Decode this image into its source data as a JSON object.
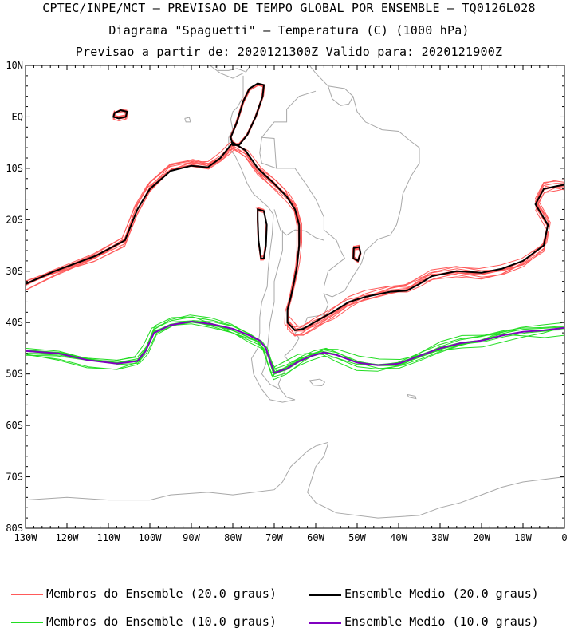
{
  "header": {
    "line1": "CPTEC/INPE/MCT – PREVISAO DE TEMPO GLOBAL POR ENSEMBLE – TQ0126L028",
    "line2": "Diagrama \"Spaguetti\" – Temperatura (C) (1000 hPa)",
    "line3": "Previsao a partir de: 2020121300Z  Valido para: 2020121900Z"
  },
  "axes": {
    "lat_labels": [
      "10N",
      "EQ",
      "10S",
      "20S",
      "30S",
      "40S",
      "50S",
      "60S",
      "70S",
      "80S"
    ],
    "lon_labels": [
      "130W",
      "120W",
      "110W",
      "100W",
      "90W",
      "80W",
      "70W",
      "60W",
      "50W",
      "40W",
      "30W",
      "20W",
      "10W",
      "0"
    ]
  },
  "legend": {
    "members_20": "Membros do Ensemble (20.0 graus)",
    "mean_20": "Ensemble Medio (20.0 graus)",
    "members_10": "Membros do Ensemble (10.0 graus)",
    "mean_10": "Ensemble Medio (10.0 graus)"
  },
  "colors": {
    "members_20": "#ff5a5a",
    "mean_20": "#000000",
    "members_10": "#22dd22",
    "mean_10": "#8000c0",
    "coastline": "#a8a8a8"
  },
  "map_data": {
    "extent": {
      "lon": [
        -130,
        0
      ],
      "lat": [
        -80,
        10
      ]
    },
    "isotherm_20_mean": [
      [
        -130,
        -32.5
      ],
      [
        -123,
        -30
      ],
      [
        -113,
        -27
      ],
      [
        -106,
        -24
      ],
      [
        -103,
        -18
      ],
      [
        -100,
        -14
      ],
      [
        -95,
        -10.5
      ],
      [
        -90,
        -9.5
      ],
      [
        -86,
        -9.8
      ],
      [
        -83,
        -8
      ],
      [
        -81,
        -6
      ],
      [
        -80,
        -5
      ],
      [
        -77,
        -6.5
      ],
      [
        -74,
        -10
      ],
      [
        -70,
        -13
      ],
      [
        -67,
        -15.5
      ],
      [
        -65,
        -18
      ],
      [
        -64,
        -21
      ],
      [
        -64,
        -25
      ],
      [
        -64.5,
        -29
      ],
      [
        -65.2,
        -32
      ],
      [
        -66,
        -35
      ],
      [
        -66.8,
        -37.5
      ],
      [
        -66.8,
        -40
      ],
      [
        -65,
        -41.5
      ],
      [
        -63,
        -41.2
      ],
      [
        -60,
        -39.8
      ],
      [
        -56,
        -38
      ],
      [
        -52,
        -36
      ],
      [
        -48,
        -35
      ],
      [
        -42,
        -34
      ],
      [
        -38,
        -33.8
      ],
      [
        -35,
        -32.5
      ],
      [
        -32,
        -31
      ],
      [
        -26,
        -30
      ],
      [
        -20,
        -30.3
      ],
      [
        -15,
        -29.5
      ],
      [
        -10,
        -28
      ],
      [
        -5,
        -25
      ],
      [
        -4,
        -21
      ],
      [
        -7,
        -17
      ],
      [
        -5,
        -14
      ],
      [
        -2,
        -13.5
      ],
      [
        0,
        -13.2
      ]
    ],
    "isotherm_20_peru_loop": [
      [
        -80.5,
        -4
      ],
      [
        -79,
        -1
      ],
      [
        -77.5,
        3
      ],
      [
        -76,
        5.5
      ],
      [
        -74,
        6.5
      ],
      [
        -72.5,
        6.2
      ],
      [
        -72.8,
        4
      ],
      [
        -74.5,
        0
      ],
      [
        -76.5,
        -3.5
      ],
      [
        -78.5,
        -5.5
      ],
      [
        -80,
        -5.5
      ],
      [
        -80.5,
        -4
      ]
    ],
    "isotherm_20_andes_loop": [
      [
        -74,
        -18
      ],
      [
        -72.5,
        -18.3
      ],
      [
        -71.8,
        -21
      ],
      [
        -72,
        -25
      ],
      [
        -72.5,
        -27.5
      ],
      [
        -73.2,
        -27.5
      ],
      [
        -73.8,
        -24
      ],
      [
        -74,
        -20
      ],
      [
        -74,
        -18
      ]
    ],
    "isotherm_20_galapagos_loop": [
      [
        -108.5,
        0.8
      ],
      [
        -107,
        1.3
      ],
      [
        -105.5,
        1
      ],
      [
        -105.8,
        0
      ],
      [
        -107.5,
        -0.3
      ],
      [
        -108.8,
        0
      ],
      [
        -108.5,
        0.8
      ]
    ],
    "isotherm_20_brazil_loop": [
      [
        -50.8,
        -25.5
      ],
      [
        -49.5,
        -25.3
      ],
      [
        -49.2,
        -26.5
      ],
      [
        -49.8,
        -28
      ],
      [
        -50.9,
        -27.5
      ],
      [
        -50.8,
        -25.5
      ]
    ],
    "isotherm_10_mean": [
      [
        -130,
        -45.5
      ],
      [
        -122,
        -46
      ],
      [
        -115,
        -47.3
      ],
      [
        -108,
        -48
      ],
      [
        -103,
        -47.5
      ],
      [
        -101,
        -45.5
      ],
      [
        -99,
        -42
      ],
      [
        -95,
        -40.5
      ],
      [
        -90,
        -39.8
      ],
      [
        -85,
        -40.3
      ],
      [
        -80,
        -41.2
      ],
      [
        -76,
        -42.5
      ],
      [
        -73.5,
        -43.5
      ],
      [
        -72,
        -45
      ],
      [
        -71,
        -47.5
      ],
      [
        -70,
        -49.8
      ],
      [
        -67,
        -49
      ],
      [
        -64,
        -47.5
      ],
      [
        -61,
        -46.5
      ],
      [
        -58,
        -45.8
      ],
      [
        -55,
        -46.3
      ],
      [
        -50,
        -47.8
      ],
      [
        -45,
        -48.3
      ],
      [
        -40,
        -48
      ],
      [
        -35,
        -46.5
      ],
      [
        -30,
        -45
      ],
      [
        -25,
        -44
      ],
      [
        -20,
        -43.5
      ],
      [
        -15,
        -42.5
      ],
      [
        -10,
        -41.8
      ],
      [
        -5,
        -41.5
      ],
      [
        0,
        -41
      ]
    ]
  }
}
